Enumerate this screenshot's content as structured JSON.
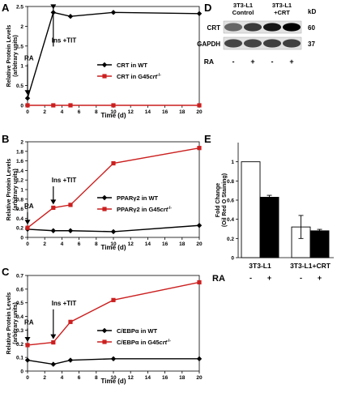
{
  "panel_labels": {
    "A": "A",
    "B": "B",
    "C": "C",
    "D": "D",
    "E": "E"
  },
  "chart_data": [
    {
      "id": "A",
      "type": "line",
      "xlabel": "Time (d)",
      "ylabel": [
        "Relative Protein Levels",
        "(arbitrary units)"
      ],
      "xlim": [
        0,
        20
      ],
      "ylim": [
        0,
        2.5
      ],
      "xticks": [
        0,
        2,
        4,
        6,
        8,
        10,
        12,
        14,
        16,
        18,
        20
      ],
      "yticks": [
        0,
        0.5,
        1,
        1.5,
        2,
        2.5
      ],
      "ytick_labels": [
        "0",
        "0.5",
        "1",
        "1.5",
        "2",
        "2.5"
      ],
      "series": [
        {
          "name": "CRT in WT",
          "marker": "diamond",
          "color": "#000000",
          "x": [
            0,
            3,
            5,
            10,
            20
          ],
          "y": [
            0.18,
            2.35,
            2.25,
            2.35,
            2.32
          ]
        },
        {
          "name": "CRT in G45crt",
          "name_main": "CRT in G45",
          "name_italic": "crt",
          "name_sup": "-/-",
          "marker": "square",
          "color": "#cc1f1f",
          "x": [
            0,
            3,
            5,
            10,
            20
          ],
          "y": [
            0,
            0,
            0,
            0,
            0
          ]
        }
      ],
      "annotations": [
        {
          "text": "RA",
          "x": 0,
          "y": 1.1
        },
        {
          "text": "Ins +TIT",
          "x": 3,
          "y": 1.55
        }
      ]
    },
    {
      "id": "B",
      "type": "line",
      "xlabel": "Time (d)",
      "ylabel": [
        "Relative Protein Levels",
        "(arbitrary units)"
      ],
      "xlim": [
        0,
        20
      ],
      "ylim": [
        0,
        2
      ],
      "xticks": [
        0,
        2,
        4,
        6,
        8,
        10,
        12,
        14,
        16,
        18,
        20
      ],
      "yticks": [
        0,
        0.2,
        0.4,
        0.6,
        0.8,
        1,
        1.2,
        1.4,
        1.6,
        1.8,
        2
      ],
      "ytick_labels": [
        "0",
        "0.2",
        "0.4",
        "0.6",
        "0.8",
        "1",
        "1.2",
        "1.4",
        "1.6",
        "1.8",
        "2"
      ],
      "series": [
        {
          "name": "PPARγ2 in WT",
          "marker": "diamond",
          "color": "#000000",
          "x": [
            0,
            3,
            5,
            10,
            20
          ],
          "y": [
            0.17,
            0.14,
            0.14,
            0.12,
            0.25
          ]
        },
        {
          "name": "PPARγ2 in G45crt",
          "name_main": "PPARγ2 in G45",
          "name_italic": "crt",
          "name_sup": "-/-",
          "marker": "square",
          "color": "#cc1f1f",
          "x": [
            0,
            3,
            5,
            10,
            20
          ],
          "y": [
            0.2,
            0.62,
            0.68,
            1.55,
            1.87
          ]
        }
      ],
      "annotations": [
        {
          "text": "RA",
          "x": 0,
          "y": 0.58
        },
        {
          "text": "Ins +TIT",
          "x": 3,
          "y": 1.12
        }
      ]
    },
    {
      "id": "C",
      "type": "line",
      "xlabel": "Time (d)",
      "ylabel": [
        "Relative Protein Levels",
        "(arbitrary units)"
      ],
      "xlim": [
        0,
        20
      ],
      "ylim": [
        0,
        0.7
      ],
      "xticks": [
        0,
        2,
        4,
        6,
        8,
        10,
        12,
        14,
        16,
        18,
        20
      ],
      "yticks": [
        0,
        0.1,
        0.2,
        0.3,
        0.4,
        0.5,
        0.6,
        0.7
      ],
      "ytick_labels": [
        "0",
        "0.1",
        "0.2",
        "0.3",
        "0.4",
        "0.5",
        "0.6",
        "0.7"
      ],
      "series": [
        {
          "name": "C/EBPα in WT",
          "marker": "diamond",
          "color": "#000000",
          "x": [
            0,
            3,
            5,
            10,
            20
          ],
          "y": [
            0.08,
            0.05,
            0.08,
            0.09,
            0.09
          ]
        },
        {
          "name": "C/EBPα in G45crt",
          "name_main": "C/EBPα in G45",
          "name_italic": "crt",
          "name_sup": "-/-",
          "marker": "square",
          "color": "#cc1f1f",
          "x": [
            0,
            3,
            5,
            10,
            20
          ],
          "y": [
            0.19,
            0.21,
            0.36,
            0.52,
            0.65
          ]
        }
      ],
      "annotations": [
        {
          "text": "RA",
          "x": 0,
          "y": 0.33
        },
        {
          "text": "Ins +TIT",
          "x": 3,
          "y": 0.47
        }
      ]
    },
    {
      "id": "E",
      "type": "bar",
      "ylabel": [
        "Fold Change",
        "(Oil Red O Staining)"
      ],
      "ylim": [
        0,
        1.2
      ],
      "yticks": [
        0,
        0.2,
        0.4,
        0.6,
        0.8,
        1
      ],
      "ytick_labels": [
        "0",
        "0.2",
        "0.4",
        "0.6",
        "0.8",
        "1"
      ],
      "bars": [
        {
          "group": "3T3-L1",
          "ra": "-",
          "value": 1.0,
          "error": 0,
          "fill": "#ffffff"
        },
        {
          "group": "3T3-L1",
          "ra": "+",
          "value": 0.63,
          "error": 0.02,
          "fill": "#000000"
        },
        {
          "group": "3T3-L1+CRT",
          "ra": "-",
          "value": 0.32,
          "error": 0.12,
          "fill": "#ffffff"
        },
        {
          "group": "3T3-L1+CRT",
          "ra": "+",
          "value": 0.28,
          "error": 0.015,
          "fill": "#000000"
        }
      ],
      "group_labels": [
        "3T3-L1",
        "3T3-L1+CRT"
      ],
      "ra_label": "RA",
      "ra_signs": [
        "-",
        "+",
        "-",
        "+"
      ]
    }
  ],
  "blot": {
    "columns": [
      "3T3-L1\nControl",
      "3T3-L1\n+CRT"
    ],
    "column_line1": [
      "3T3-L1",
      "3T3-L1"
    ],
    "column_line2": [
      "Control",
      "+CRT"
    ],
    "kd_label": "kD",
    "rows": [
      {
        "label": "CRT",
        "kd": "60",
        "intensity": [
          0.55,
          0.75,
          0.9,
          1.0
        ]
      },
      {
        "label": "GAPDH",
        "kd": "37",
        "intensity": [
          0.7,
          0.7,
          0.72,
          0.72
        ]
      }
    ],
    "ra_label": "RA",
    "ra_signs": [
      "-",
      "+",
      "-",
      "+"
    ]
  }
}
